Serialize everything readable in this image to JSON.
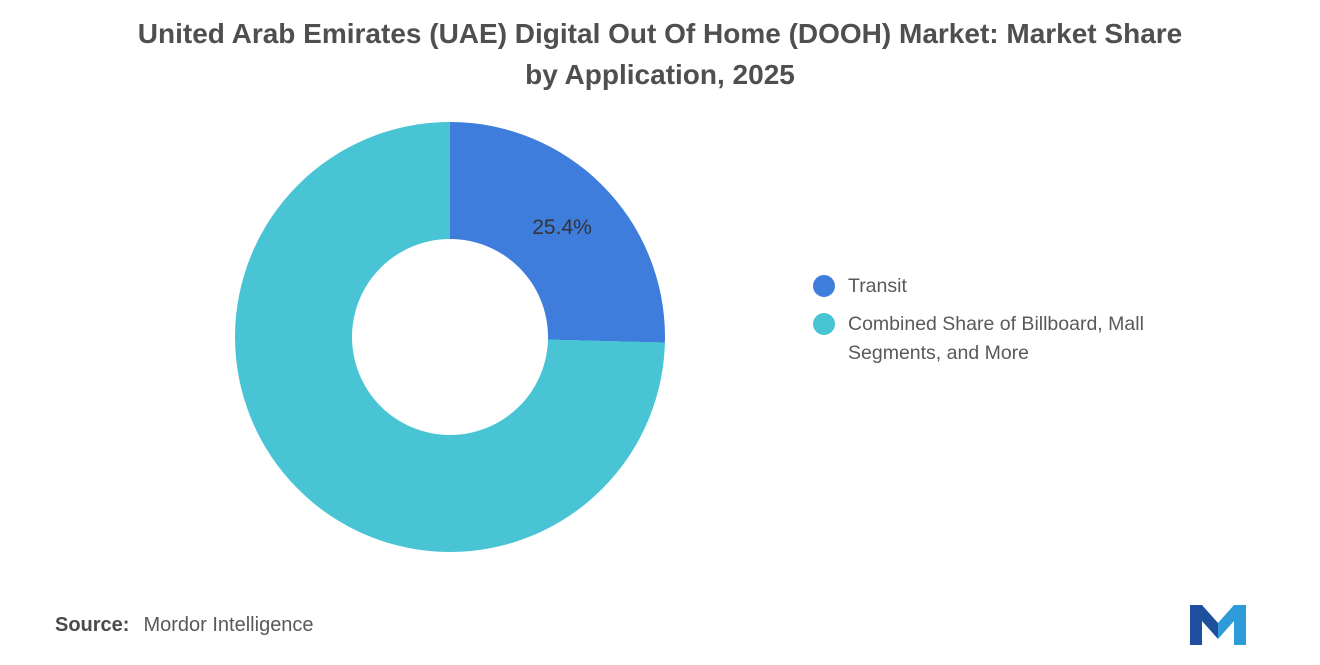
{
  "chart_data": {
    "type": "pie",
    "donut": true,
    "title": "United Arab Emirates (UAE) Digital Out Of Home (DOOH) Market: Market Share by Application, 2025",
    "start_angle_deg": 0,
    "direction": "clockwise",
    "legend_position": "right",
    "slices": [
      {
        "label": "Transit",
        "value": 25.4,
        "data_label": "25.4%",
        "color": "#3E7DDB"
      },
      {
        "label": "Combined Share of Billboard, Mall Segments, and More",
        "value": 74.6,
        "data_label": "",
        "color": "#48C4D4"
      }
    ]
  },
  "source": {
    "prefix": "Source:",
    "text": "Mordor Intelligence"
  },
  "logo": {
    "name": "mordor-intelligence-logo",
    "dark_color": "#1E4F9C",
    "light_color": "#2E9BD8"
  }
}
